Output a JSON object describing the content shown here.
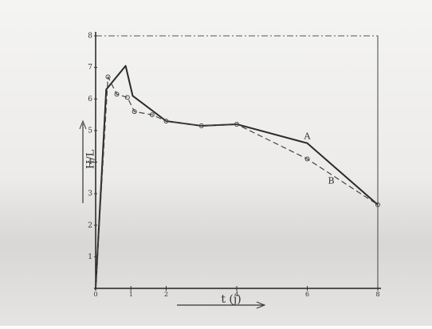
{
  "chart_data": {
    "type": "line",
    "xlabel": "t (j)",
    "ylabel": "H/L",
    "xlim": [
      0,
      8
    ],
    "ylim": [
      0,
      8
    ],
    "xticks": [
      0,
      1,
      2,
      4,
      6,
      8
    ],
    "yticks": [
      1,
      2,
      3,
      4,
      5,
      6,
      7,
      8
    ],
    "series": [
      {
        "name": "A",
        "color": "#2a2a2a",
        "x": [
          0,
          0.3,
          0.85,
          1.05,
          2,
          3,
          4,
          6,
          8
        ],
        "values": [
          0,
          6.3,
          7.05,
          6.1,
          5.3,
          5.15,
          5.2,
          4.6,
          2.65
        ]
      },
      {
        "name": "B",
        "color": "#444444",
        "x": [
          0,
          0.35,
          0.6,
          0.9,
          1.1,
          1.6,
          2,
          3,
          4,
          6,
          8
        ],
        "values": [
          0,
          6.7,
          6.15,
          6.05,
          5.6,
          5.5,
          5.3,
          5.15,
          5.2,
          4.1,
          2.65
        ]
      }
    ]
  }
}
